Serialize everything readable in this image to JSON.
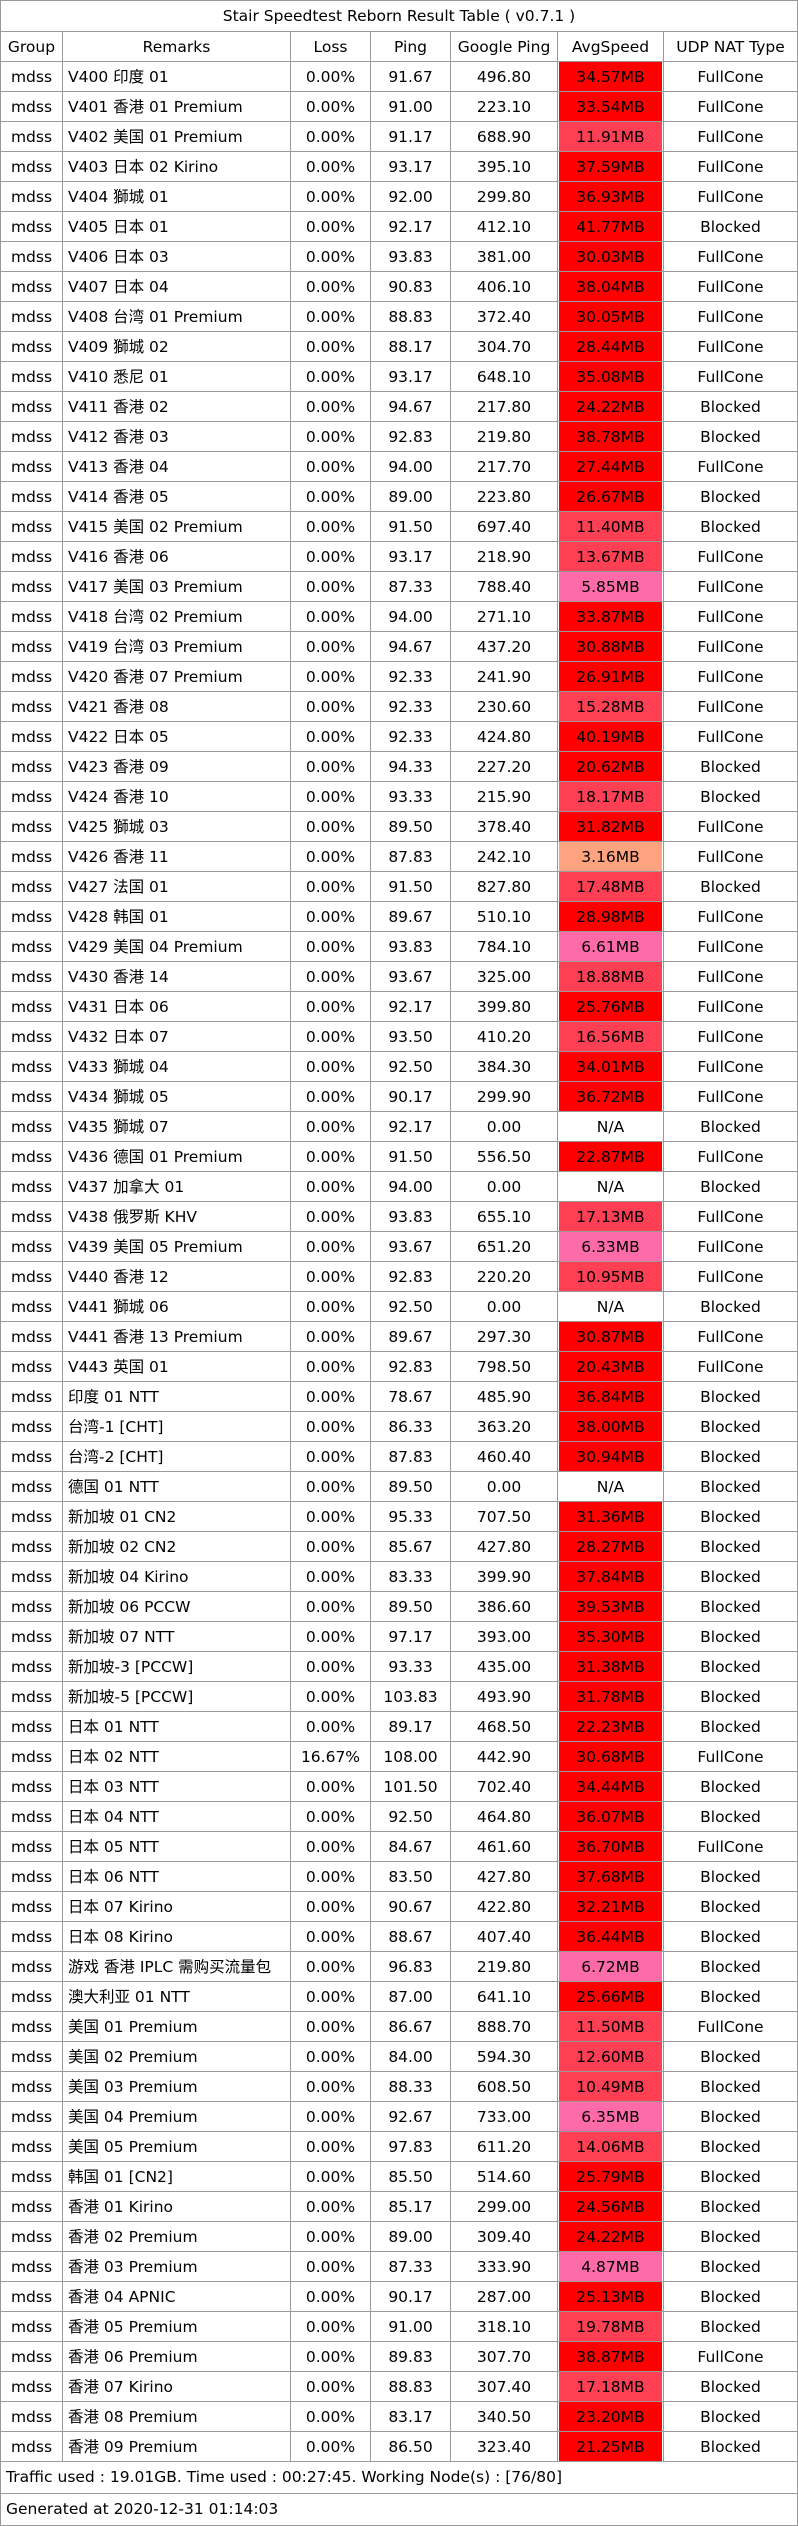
{
  "title": "Stair Speedtest Reborn Result Table ( v0.7.1 )",
  "headers": {
    "group": "Group",
    "remarks": "Remarks",
    "loss": "Loss",
    "ping": "Ping",
    "google_ping": "Google Ping",
    "avg_speed": "AvgSpeed",
    "nat": "UDP NAT Type"
  },
  "colors": {
    "high": "#ff0000",
    "mid": "#ff3f54",
    "low": "#ff6aa8",
    "lowest": "#ffa280",
    "na": "#ffffff"
  },
  "rows": [
    {
      "group": "mdss",
      "remarks": "V400 印度 01",
      "loss": "0.00%",
      "ping": "91.67",
      "gping": "496.80",
      "speed": "34.57MB",
      "level": "high",
      "nat": "FullCone"
    },
    {
      "group": "mdss",
      "remarks": "V401 香港 01 Premium",
      "loss": "0.00%",
      "ping": "91.00",
      "gping": "223.10",
      "speed": "33.54MB",
      "level": "high",
      "nat": "FullCone"
    },
    {
      "group": "mdss",
      "remarks": "V402 美国 01 Premium",
      "loss": "0.00%",
      "ping": "91.17",
      "gping": "688.90",
      "speed": "11.91MB",
      "level": "mid",
      "nat": "FullCone"
    },
    {
      "group": "mdss",
      "remarks": "V403 日本 02 Kirino",
      "loss": "0.00%",
      "ping": "93.17",
      "gping": "395.10",
      "speed": "37.59MB",
      "level": "high",
      "nat": "FullCone"
    },
    {
      "group": "mdss",
      "remarks": "V404 獅城 01",
      "loss": "0.00%",
      "ping": "92.00",
      "gping": "299.80",
      "speed": "36.93MB",
      "level": "high",
      "nat": "FullCone"
    },
    {
      "group": "mdss",
      "remarks": "V405 日本 01",
      "loss": "0.00%",
      "ping": "92.17",
      "gping": "412.10",
      "speed": "41.77MB",
      "level": "high",
      "nat": "Blocked"
    },
    {
      "group": "mdss",
      "remarks": "V406 日本 03",
      "loss": "0.00%",
      "ping": "93.83",
      "gping": "381.00",
      "speed": "30.03MB",
      "level": "high",
      "nat": "FullCone"
    },
    {
      "group": "mdss",
      "remarks": "V407 日本 04",
      "loss": "0.00%",
      "ping": "90.83",
      "gping": "406.10",
      "speed": "38.04MB",
      "level": "high",
      "nat": "FullCone"
    },
    {
      "group": "mdss",
      "remarks": "V408 台湾 01 Premium",
      "loss": "0.00%",
      "ping": "88.83",
      "gping": "372.40",
      "speed": "30.05MB",
      "level": "high",
      "nat": "FullCone"
    },
    {
      "group": "mdss",
      "remarks": "V409 獅城 02",
      "loss": "0.00%",
      "ping": "88.17",
      "gping": "304.70",
      "speed": "28.44MB",
      "level": "high",
      "nat": "FullCone"
    },
    {
      "group": "mdss",
      "remarks": "V410 悉尼 01",
      "loss": "0.00%",
      "ping": "93.17",
      "gping": "648.10",
      "speed": "35.08MB",
      "level": "high",
      "nat": "FullCone"
    },
    {
      "group": "mdss",
      "remarks": "V411 香港 02",
      "loss": "0.00%",
      "ping": "94.67",
      "gping": "217.80",
      "speed": "24.22MB",
      "level": "high",
      "nat": "Blocked"
    },
    {
      "group": "mdss",
      "remarks": "V412 香港 03",
      "loss": "0.00%",
      "ping": "92.83",
      "gping": "219.80",
      "speed": "38.78MB",
      "level": "high",
      "nat": "Blocked"
    },
    {
      "group": "mdss",
      "remarks": "V413 香港 04",
      "loss": "0.00%",
      "ping": "94.00",
      "gping": "217.70",
      "speed": "27.44MB",
      "level": "high",
      "nat": "FullCone"
    },
    {
      "group": "mdss",
      "remarks": "V414 香港 05",
      "loss": "0.00%",
      "ping": "89.00",
      "gping": "223.80",
      "speed": "26.67MB",
      "level": "high",
      "nat": "Blocked"
    },
    {
      "group": "mdss",
      "remarks": "V415 美国 02 Premium",
      "loss": "0.00%",
      "ping": "91.50",
      "gping": "697.40",
      "speed": "11.40MB",
      "level": "mid",
      "nat": "Blocked"
    },
    {
      "group": "mdss",
      "remarks": "V416 香港 06",
      "loss": "0.00%",
      "ping": "93.17",
      "gping": "218.90",
      "speed": "13.67MB",
      "level": "mid",
      "nat": "FullCone"
    },
    {
      "group": "mdss",
      "remarks": "V417 美国 03 Premium",
      "loss": "0.00%",
      "ping": "87.33",
      "gping": "788.40",
      "speed": "5.85MB",
      "level": "low",
      "nat": "FullCone"
    },
    {
      "group": "mdss",
      "remarks": "V418 台湾 02 Premium",
      "loss": "0.00%",
      "ping": "94.00",
      "gping": "271.10",
      "speed": "33.87MB",
      "level": "high",
      "nat": "FullCone"
    },
    {
      "group": "mdss",
      "remarks": "V419 台湾 03 Premium",
      "loss": "0.00%",
      "ping": "94.67",
      "gping": "437.20",
      "speed": "30.88MB",
      "level": "high",
      "nat": "FullCone"
    },
    {
      "group": "mdss",
      "remarks": "V420 香港 07 Premium",
      "loss": "0.00%",
      "ping": "92.33",
      "gping": "241.90",
      "speed": "26.91MB",
      "level": "high",
      "nat": "FullCone"
    },
    {
      "group": "mdss",
      "remarks": "V421 香港 08",
      "loss": "0.00%",
      "ping": "92.33",
      "gping": "230.60",
      "speed": "15.28MB",
      "level": "mid",
      "nat": "FullCone"
    },
    {
      "group": "mdss",
      "remarks": "V422 日本 05",
      "loss": "0.00%",
      "ping": "92.33",
      "gping": "424.80",
      "speed": "40.19MB",
      "level": "high",
      "nat": "FullCone"
    },
    {
      "group": "mdss",
      "remarks": "V423 香港 09",
      "loss": "0.00%",
      "ping": "94.33",
      "gping": "227.20",
      "speed": "20.62MB",
      "level": "high",
      "nat": "Blocked"
    },
    {
      "group": "mdss",
      "remarks": "V424 香港 10",
      "loss": "0.00%",
      "ping": "93.33",
      "gping": "215.90",
      "speed": "18.17MB",
      "level": "mid",
      "nat": "Blocked"
    },
    {
      "group": "mdss",
      "remarks": "V425 獅城 03",
      "loss": "0.00%",
      "ping": "89.50",
      "gping": "378.40",
      "speed": "31.82MB",
      "level": "high",
      "nat": "FullCone"
    },
    {
      "group": "mdss",
      "remarks": "V426 香港 11",
      "loss": "0.00%",
      "ping": "87.83",
      "gping": "242.10",
      "speed": "3.16MB",
      "level": "lowest",
      "nat": "FullCone"
    },
    {
      "group": "mdss",
      "remarks": "V427 法国 01",
      "loss": "0.00%",
      "ping": "91.50",
      "gping": "827.80",
      "speed": "17.48MB",
      "level": "mid",
      "nat": "Blocked"
    },
    {
      "group": "mdss",
      "remarks": "V428 韩国 01",
      "loss": "0.00%",
      "ping": "89.67",
      "gping": "510.10",
      "speed": "28.98MB",
      "level": "high",
      "nat": "FullCone"
    },
    {
      "group": "mdss",
      "remarks": "V429 美国 04 Premium",
      "loss": "0.00%",
      "ping": "93.83",
      "gping": "784.10",
      "speed": "6.61MB",
      "level": "low",
      "nat": "FullCone"
    },
    {
      "group": "mdss",
      "remarks": "V430 香港 14",
      "loss": "0.00%",
      "ping": "93.67",
      "gping": "325.00",
      "speed": "18.88MB",
      "level": "mid",
      "nat": "FullCone"
    },
    {
      "group": "mdss",
      "remarks": "V431 日本 06",
      "loss": "0.00%",
      "ping": "92.17",
      "gping": "399.80",
      "speed": "25.76MB",
      "level": "high",
      "nat": "FullCone"
    },
    {
      "group": "mdss",
      "remarks": "V432 日本 07",
      "loss": "0.00%",
      "ping": "93.50",
      "gping": "410.20",
      "speed": "16.56MB",
      "level": "mid",
      "nat": "FullCone"
    },
    {
      "group": "mdss",
      "remarks": "V433 獅城 04",
      "loss": "0.00%",
      "ping": "92.50",
      "gping": "384.30",
      "speed": "34.01MB",
      "level": "high",
      "nat": "FullCone"
    },
    {
      "group": "mdss",
      "remarks": "V434 獅城 05",
      "loss": "0.00%",
      "ping": "90.17",
      "gping": "299.90",
      "speed": "36.72MB",
      "level": "high",
      "nat": "FullCone"
    },
    {
      "group": "mdss",
      "remarks": "V435 獅城 07",
      "loss": "0.00%",
      "ping": "92.17",
      "gping": "0.00",
      "speed": "N/A",
      "level": "na",
      "nat": "Blocked"
    },
    {
      "group": "mdss",
      "remarks": "V436 德国 01 Premium",
      "loss": "0.00%",
      "ping": "91.50",
      "gping": "556.50",
      "speed": "22.87MB",
      "level": "high",
      "nat": "FullCone"
    },
    {
      "group": "mdss",
      "remarks": "V437 加拿大 01",
      "loss": "0.00%",
      "ping": "94.00",
      "gping": "0.00",
      "speed": "N/A",
      "level": "na",
      "nat": "Blocked"
    },
    {
      "group": "mdss",
      "remarks": "V438 俄罗斯 KHV",
      "loss": "0.00%",
      "ping": "93.83",
      "gping": "655.10",
      "speed": "17.13MB",
      "level": "mid",
      "nat": "FullCone"
    },
    {
      "group": "mdss",
      "remarks": "V439 美国 05 Premium",
      "loss": "0.00%",
      "ping": "93.67",
      "gping": "651.20",
      "speed": "6.33MB",
      "level": "low",
      "nat": "FullCone"
    },
    {
      "group": "mdss",
      "remarks": "V440 香港 12",
      "loss": "0.00%",
      "ping": "92.83",
      "gping": "220.20",
      "speed": "10.95MB",
      "level": "mid",
      "nat": "FullCone"
    },
    {
      "group": "mdss",
      "remarks": "V441 獅城 06",
      "loss": "0.00%",
      "ping": "92.50",
      "gping": "0.00",
      "speed": "N/A",
      "level": "na",
      "nat": "Blocked"
    },
    {
      "group": "mdss",
      "remarks": "V441 香港 13 Premium",
      "loss": "0.00%",
      "ping": "89.67",
      "gping": "297.30",
      "speed": "30.87MB",
      "level": "high",
      "nat": "FullCone"
    },
    {
      "group": "mdss",
      "remarks": "V443 英国 01",
      "loss": "0.00%",
      "ping": "92.83",
      "gping": "798.50",
      "speed": "20.43MB",
      "level": "high",
      "nat": "FullCone"
    },
    {
      "group": "mdss",
      "remarks": "印度 01 NTT",
      "loss": "0.00%",
      "ping": "78.67",
      "gping": "485.90",
      "speed": "36.84MB",
      "level": "high",
      "nat": "Blocked"
    },
    {
      "group": "mdss",
      "remarks": "台湾-1 [CHT]",
      "loss": "0.00%",
      "ping": "86.33",
      "gping": "363.20",
      "speed": "38.00MB",
      "level": "high",
      "nat": "Blocked"
    },
    {
      "group": "mdss",
      "remarks": "台湾-2 [CHT]",
      "loss": "0.00%",
      "ping": "87.83",
      "gping": "460.40",
      "speed": "30.94MB",
      "level": "high",
      "nat": "Blocked"
    },
    {
      "group": "mdss",
      "remarks": "德国 01 NTT",
      "loss": "0.00%",
      "ping": "89.50",
      "gping": "0.00",
      "speed": "N/A",
      "level": "na",
      "nat": "Blocked"
    },
    {
      "group": "mdss",
      "remarks": "新加坡 01 CN2",
      "loss": "0.00%",
      "ping": "95.33",
      "gping": "707.50",
      "speed": "31.36MB",
      "level": "high",
      "nat": "Blocked"
    },
    {
      "group": "mdss",
      "remarks": "新加坡 02 CN2",
      "loss": "0.00%",
      "ping": "85.67",
      "gping": "427.80",
      "speed": "28.27MB",
      "level": "high",
      "nat": "Blocked"
    },
    {
      "group": "mdss",
      "remarks": "新加坡 04 Kirino",
      "loss": "0.00%",
      "ping": "83.33",
      "gping": "399.90",
      "speed": "37.84MB",
      "level": "high",
      "nat": "Blocked"
    },
    {
      "group": "mdss",
      "remarks": "新加坡 06 PCCW",
      "loss": "0.00%",
      "ping": "89.50",
      "gping": "386.60",
      "speed": "39.53MB",
      "level": "high",
      "nat": "Blocked"
    },
    {
      "group": "mdss",
      "remarks": "新加坡 07 NTT",
      "loss": "0.00%",
      "ping": "97.17",
      "gping": "393.00",
      "speed": "35.30MB",
      "level": "high",
      "nat": "Blocked"
    },
    {
      "group": "mdss",
      "remarks": "新加坡-3 [PCCW]",
      "loss": "0.00%",
      "ping": "93.33",
      "gping": "435.00",
      "speed": "31.38MB",
      "level": "high",
      "nat": "Blocked"
    },
    {
      "group": "mdss",
      "remarks": "新加坡-5 [PCCW]",
      "loss": "0.00%",
      "ping": "103.83",
      "gping": "493.90",
      "speed": "31.78MB",
      "level": "high",
      "nat": "Blocked"
    },
    {
      "group": "mdss",
      "remarks": "日本 01 NTT",
      "loss": "0.00%",
      "ping": "89.17",
      "gping": "468.50",
      "speed": "22.23MB",
      "level": "high",
      "nat": "Blocked"
    },
    {
      "group": "mdss",
      "remarks": "日本 02 NTT",
      "loss": "16.67%",
      "ping": "108.00",
      "gping": "442.90",
      "speed": "30.68MB",
      "level": "high",
      "nat": "FullCone"
    },
    {
      "group": "mdss",
      "remarks": "日本 03 NTT",
      "loss": "0.00%",
      "ping": "101.50",
      "gping": "702.40",
      "speed": "34.44MB",
      "level": "high",
      "nat": "Blocked"
    },
    {
      "group": "mdss",
      "remarks": "日本 04 NTT",
      "loss": "0.00%",
      "ping": "92.50",
      "gping": "464.80",
      "speed": "36.07MB",
      "level": "high",
      "nat": "Blocked"
    },
    {
      "group": "mdss",
      "remarks": "日本 05 NTT",
      "loss": "0.00%",
      "ping": "84.67",
      "gping": "461.60",
      "speed": "36.70MB",
      "level": "high",
      "nat": "FullCone"
    },
    {
      "group": "mdss",
      "remarks": "日本 06 NTT",
      "loss": "0.00%",
      "ping": "83.50",
      "gping": "427.80",
      "speed": "37.68MB",
      "level": "high",
      "nat": "Blocked"
    },
    {
      "group": "mdss",
      "remarks": "日本 07 Kirino",
      "loss": "0.00%",
      "ping": "90.67",
      "gping": "422.80",
      "speed": "32.21MB",
      "level": "high",
      "nat": "Blocked"
    },
    {
      "group": "mdss",
      "remarks": "日本 08 Kirino",
      "loss": "0.00%",
      "ping": "88.67",
      "gping": "407.40",
      "speed": "36.44MB",
      "level": "high",
      "nat": "Blocked"
    },
    {
      "group": "mdss",
      "remarks": "游戏 香港 IPLC 需购买流量包",
      "loss": "0.00%",
      "ping": "96.83",
      "gping": "219.80",
      "speed": "6.72MB",
      "level": "low",
      "nat": "Blocked"
    },
    {
      "group": "mdss",
      "remarks": "澳大利亚 01 NTT",
      "loss": "0.00%",
      "ping": "87.00",
      "gping": "641.10",
      "speed": "25.66MB",
      "level": "high",
      "nat": "Blocked"
    },
    {
      "group": "mdss",
      "remarks": "美国 01 Premium",
      "loss": "0.00%",
      "ping": "86.67",
      "gping": "888.70",
      "speed": "11.50MB",
      "level": "mid",
      "nat": "FullCone"
    },
    {
      "group": "mdss",
      "remarks": "美国 02 Premium",
      "loss": "0.00%",
      "ping": "84.00",
      "gping": "594.30",
      "speed": "12.60MB",
      "level": "mid",
      "nat": "Blocked"
    },
    {
      "group": "mdss",
      "remarks": "美国 03 Premium",
      "loss": "0.00%",
      "ping": "88.33",
      "gping": "608.50",
      "speed": "10.49MB",
      "level": "mid",
      "nat": "Blocked"
    },
    {
      "group": "mdss",
      "remarks": "美国 04 Premium",
      "loss": "0.00%",
      "ping": "92.67",
      "gping": "733.00",
      "speed": "6.35MB",
      "level": "low",
      "nat": "Blocked"
    },
    {
      "group": "mdss",
      "remarks": "美国 05 Premium",
      "loss": "0.00%",
      "ping": "97.83",
      "gping": "611.20",
      "speed": "14.06MB",
      "level": "mid",
      "nat": "Blocked"
    },
    {
      "group": "mdss",
      "remarks": "韩国 01 [CN2]",
      "loss": "0.00%",
      "ping": "85.50",
      "gping": "514.60",
      "speed": "25.79MB",
      "level": "high",
      "nat": "Blocked"
    },
    {
      "group": "mdss",
      "remarks": "香港 01 Kirino",
      "loss": "0.00%",
      "ping": "85.17",
      "gping": "299.00",
      "speed": "24.56MB",
      "level": "high",
      "nat": "Blocked"
    },
    {
      "group": "mdss",
      "remarks": "香港 02 Premium",
      "loss": "0.00%",
      "ping": "89.00",
      "gping": "309.40",
      "speed": "24.22MB",
      "level": "high",
      "nat": "Blocked"
    },
    {
      "group": "mdss",
      "remarks": "香港 03  Premium",
      "loss": "0.00%",
      "ping": "87.33",
      "gping": "333.90",
      "speed": "4.87MB",
      "level": "low",
      "nat": "Blocked"
    },
    {
      "group": "mdss",
      "remarks": "香港 04 APNIC",
      "loss": "0.00%",
      "ping": "90.17",
      "gping": "287.00",
      "speed": "25.13MB",
      "level": "high",
      "nat": "Blocked"
    },
    {
      "group": "mdss",
      "remarks": "香港 05 Premium",
      "loss": "0.00%",
      "ping": "91.00",
      "gping": "318.10",
      "speed": "19.78MB",
      "level": "mid",
      "nat": "Blocked"
    },
    {
      "group": "mdss",
      "remarks": "香港 06 Premium",
      "loss": "0.00%",
      "ping": "89.83",
      "gping": "307.70",
      "speed": "38.87MB",
      "level": "high",
      "nat": "FullCone"
    },
    {
      "group": "mdss",
      "remarks": "香港 07 Kirino",
      "loss": "0.00%",
      "ping": "88.83",
      "gping": "307.40",
      "speed": "17.18MB",
      "level": "mid",
      "nat": "Blocked"
    },
    {
      "group": "mdss",
      "remarks": "香港 08 Premium",
      "loss": "0.00%",
      "ping": "83.17",
      "gping": "340.50",
      "speed": "23.20MB",
      "level": "high",
      "nat": "Blocked"
    },
    {
      "group": "mdss",
      "remarks": "香港 09  Premium",
      "loss": "0.00%",
      "ping": "86.50",
      "gping": "323.40",
      "speed": "21.25MB",
      "level": "high",
      "nat": "Blocked"
    }
  ],
  "footer": {
    "traffic": "Traffic used : 19.01GB. Time used : 00:27:45. Working Node(s) : [76/80]",
    "generated": "Generated at 2020-12-31 01:14:03"
  }
}
